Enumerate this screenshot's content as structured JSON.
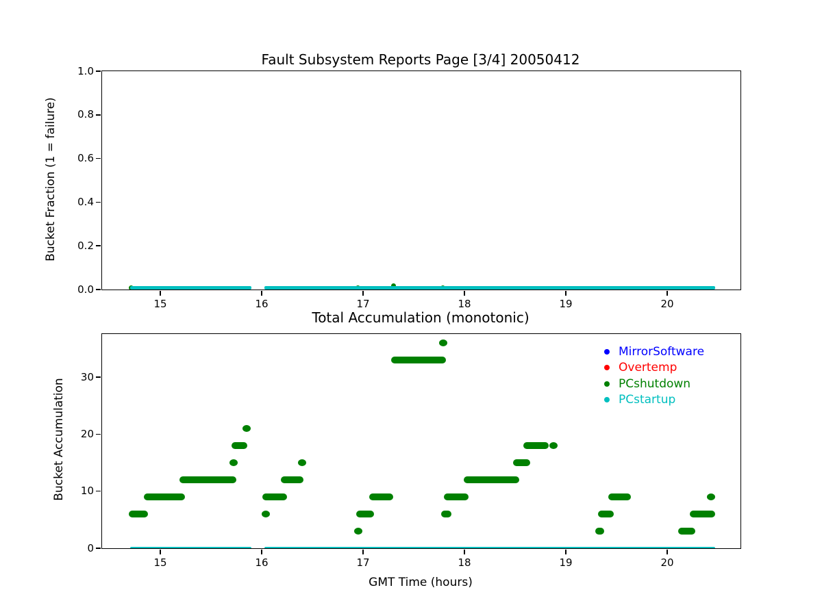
{
  "chart_data": [
    {
      "type": "scatter",
      "title": "Fault Subsystem Reports Page [3/4] 20050412",
      "xlabel": "",
      "ylabel": "Bucket Fraction (1 = failure)",
      "xlim": [
        14.43,
        20.72
      ],
      "ylim": [
        0.0,
        1.0
      ],
      "grid": false,
      "xticks": [
        15,
        16,
        17,
        18,
        19,
        20
      ],
      "xtick_labels": [
        "15",
        "16",
        "17",
        "18",
        "19",
        "20"
      ],
      "yticks": [
        0.0,
        0.2,
        0.4,
        0.6,
        0.8,
        1.0
      ],
      "ytick_labels": [
        "0.0",
        "0.2",
        "0.4",
        "0.6",
        "0.8",
        "1.0"
      ],
      "series": [
        {
          "name": "PCshutdown",
          "color": "#008000",
          "style": "marker",
          "points": [
            [
              14.71,
              0.008
            ],
            [
              16.95,
              0.008
            ],
            [
              17.3,
              0.017
            ],
            [
              17.79,
              0.008
            ]
          ]
        },
        {
          "name": "PCstartup",
          "color": "#00bfbf",
          "style": "line",
          "segments": [
            [
              14.7,
              15.9,
              0.008
            ],
            [
              16.03,
              20.47,
              0.008
            ]
          ]
        }
      ]
    },
    {
      "type": "scatter",
      "title": "Total Accumulation (monotonic)",
      "xlabel": "GMT Time (hours)",
      "ylabel": "Bucket Accumulation",
      "xlim": [
        14.43,
        20.72
      ],
      "ylim": [
        0,
        37.6
      ],
      "grid": false,
      "legend_position": "upper right",
      "xticks": [
        15,
        16,
        17,
        18,
        19,
        20
      ],
      "xtick_labels": [
        "15",
        "16",
        "17",
        "18",
        "19",
        "20"
      ],
      "yticks": [
        0,
        10,
        20,
        30
      ],
      "ytick_labels": [
        "0",
        "10",
        "20",
        "30"
      ],
      "series": [
        {
          "name": "MirrorSoftware",
          "color": "#0000ff",
          "style": "marker",
          "segments": [],
          "points": []
        },
        {
          "name": "Overtemp",
          "color": "#ff0000",
          "style": "marker",
          "segments": [],
          "points": []
        },
        {
          "name": "PCshutdown",
          "color": "#008000",
          "style": "marker",
          "segments": [
            [
              14.69,
              14.88,
              6
            ],
            [
              14.84,
              15.24,
              9
            ],
            [
              15.19,
              15.75,
              12
            ],
            [
              15.7,
              15.86,
              18
            ],
            [
              16.01,
              16.25,
              9
            ],
            [
              16.19,
              16.41,
              12
            ],
            [
              16.93,
              17.11,
              6
            ],
            [
              17.06,
              17.3,
              9
            ],
            [
              17.28,
              17.82,
              33
            ],
            [
              17.77,
              17.87,
              6
            ],
            [
              17.8,
              18.04,
              9
            ],
            [
              17.99,
              18.54,
              12
            ],
            [
              18.48,
              18.65,
              15
            ],
            [
              18.58,
              18.83,
              18
            ],
            [
              19.29,
              19.38,
              3
            ],
            [
              19.32,
              19.47,
              6
            ],
            [
              19.42,
              19.64,
              9
            ],
            [
              20.11,
              20.28,
              3
            ],
            [
              20.22,
              20.47,
              6
            ]
          ],
          "points": [
            [
              15.72,
              15
            ],
            [
              15.85,
              21
            ],
            [
              16.04,
              6
            ],
            [
              16.4,
              15
            ],
            [
              16.95,
              3
            ],
            [
              17.79,
              36
            ],
            [
              18.88,
              18
            ],
            [
              20.43,
              9
            ]
          ]
        },
        {
          "name": "PCstartup",
          "color": "#00bfbf",
          "style": "line",
          "segments": [
            [
              14.7,
              15.9,
              0
            ],
            [
              16.03,
              20.47,
              0
            ]
          ]
        }
      ]
    }
  ]
}
